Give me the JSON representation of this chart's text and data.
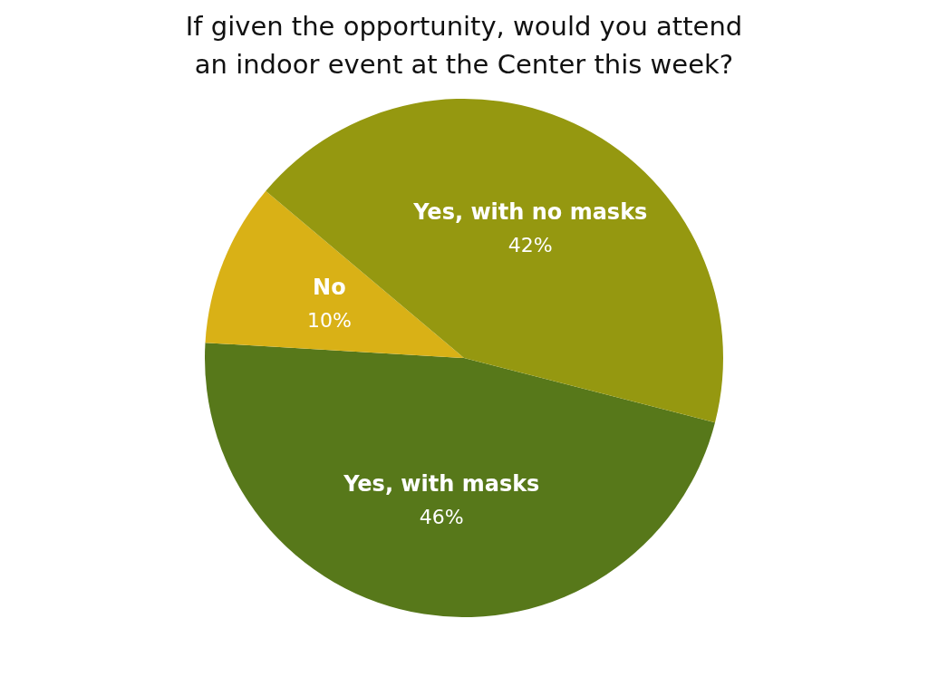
{
  "chart_data": {
    "type": "pie",
    "title": "If given the opportunity, would you attend\nan indoor event at the Center this week?",
    "categories": [
      "Yes, with masks",
      "No",
      "Yes, with no masks"
    ],
    "values": [
      46,
      10,
      42
    ],
    "value_labels": [
      "46%",
      "10%",
      "42%"
    ],
    "colors": [
      "#57781a",
      "#d9b116",
      "#959810"
    ]
  }
}
